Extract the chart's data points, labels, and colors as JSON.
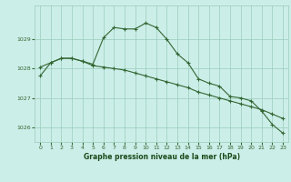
{
  "line1_x": [
    0,
    1,
    2,
    3,
    4,
    5,
    6,
    7,
    8,
    9,
    10,
    11,
    12,
    13,
    14,
    15,
    16,
    17,
    18,
    19,
    20,
    21,
    22,
    23
  ],
  "line1_y": [
    1027.75,
    1028.2,
    1028.35,
    1028.35,
    1028.25,
    1028.15,
    1029.05,
    1029.4,
    1029.35,
    1029.35,
    1029.55,
    1029.4,
    1029.0,
    1028.5,
    1028.2,
    1027.65,
    1027.5,
    1027.4,
    1027.05,
    1027.0,
    1026.9,
    1026.55,
    1026.1,
    1025.8
  ],
  "line2_x": [
    0,
    1,
    2,
    3,
    4,
    5,
    6,
    7,
    8,
    9,
    10,
    11,
    12,
    13,
    14,
    15,
    16,
    17,
    18,
    19,
    20,
    21,
    22,
    23
  ],
  "line2_y": [
    1028.05,
    1028.2,
    1028.35,
    1028.35,
    1028.25,
    1028.1,
    1028.05,
    1028.0,
    1027.95,
    1027.85,
    1027.75,
    1027.65,
    1027.55,
    1027.45,
    1027.35,
    1027.2,
    1027.1,
    1027.0,
    1026.9,
    1026.8,
    1026.7,
    1026.6,
    1026.45,
    1026.3
  ],
  "line_color": "#336633",
  "background_color": "#cceee8",
  "grid_color": "#99ccbb",
  "xlabel": "Graphe pression niveau de la mer (hPa)",
  "xlabel_color": "#1a4a1a",
  "xlim": [
    -0.5,
    23.5
  ],
  "ylim": [
    1025.5,
    1030.15
  ],
  "yticks": [
    1026,
    1027,
    1028,
    1029
  ],
  "xticks": [
    0,
    1,
    2,
    3,
    4,
    5,
    6,
    7,
    8,
    9,
    10,
    11,
    12,
    13,
    14,
    15,
    16,
    17,
    18,
    19,
    20,
    21,
    22,
    23
  ],
  "marker": "+"
}
